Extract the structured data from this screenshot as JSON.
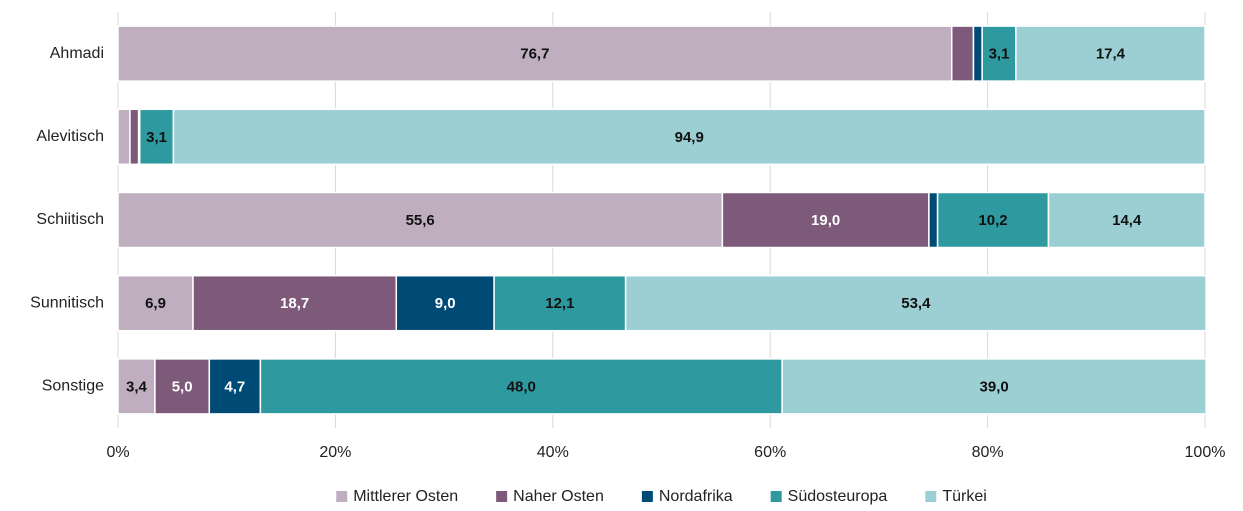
{
  "chart_data": {
    "type": "stacked_barh",
    "categories": [
      "Ahmadi",
      "Alevitisch",
      "Schiitisch",
      "Sunnitisch",
      "Sonstige"
    ],
    "series": [
      {
        "name": "Mittlerer Osten",
        "color": "#bfaebf",
        "values": [
          76.7,
          1.1,
          55.6,
          6.9,
          3.4
        ],
        "value_labels": [
          "76,7",
          null,
          "55,6",
          "6,9",
          "3,4"
        ]
      },
      {
        "name": "Naher Osten",
        "color": "#7d5a79",
        "values": [
          2.0,
          0.8,
          19.0,
          18.7,
          5.0
        ],
        "value_labels": [
          null,
          null,
          "19,0",
          "18,7",
          "5,0"
        ]
      },
      {
        "name": "Nordafrika",
        "color": "#004b76",
        "values": [
          0.8,
          0.1,
          0.8,
          9.0,
          4.7
        ],
        "value_labels": [
          null,
          null,
          null,
          "9,0",
          "4,7"
        ]
      },
      {
        "name": "Südosteuropa",
        "color": "#2e9aa0",
        "values": [
          3.1,
          3.1,
          10.2,
          12.1,
          48.0
        ],
        "value_labels": [
          "3,1",
          "3,1",
          "10,2",
          "12,1",
          "48,0"
        ]
      },
      {
        "name": "Türkei",
        "color": "#9ccfd4",
        "values": [
          17.4,
          94.9,
          14.4,
          53.4,
          39.0
        ],
        "value_labels": [
          "17,4",
          "94,9",
          "14,4",
          "53,4",
          "39,0"
        ]
      }
    ],
    "xlim": [
      0,
      100
    ],
    "xticks": [
      {
        "value": 0,
        "label": "0%"
      },
      {
        "value": 20,
        "label": "20%"
      },
      {
        "value": 40,
        "label": "40%"
      },
      {
        "value": 60,
        "label": "60%"
      },
      {
        "value": 80,
        "label": "80%"
      },
      {
        "value": 100,
        "label": "100%"
      }
    ],
    "grid": true,
    "legend": "bottom"
  }
}
